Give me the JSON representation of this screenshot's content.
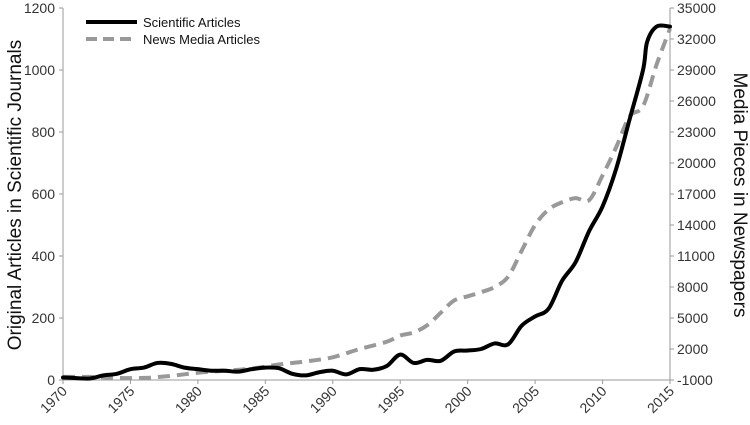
{
  "chart_data": {
    "type": "line",
    "title": "",
    "xlabel": "",
    "ylabel": "Original Articles in Scientific Journals",
    "y2label": "Media Pieces in Newspapers",
    "xlim": [
      1970,
      2015
    ],
    "ylim": [
      0,
      1200
    ],
    "y2lim": [
      -1000,
      35000
    ],
    "x_ticks": [
      "1970",
      "1975",
      "1980",
      "1985",
      "1990",
      "1995",
      "2000",
      "2005",
      "2010",
      "2015"
    ],
    "y_ticks": [
      "0",
      "200",
      "400",
      "600",
      "800",
      "1000",
      "1200"
    ],
    "y2_ticks": [
      "-1000",
      "2000",
      "5000",
      "8000",
      "11000",
      "14000",
      "17000",
      "20000",
      "23000",
      "26000",
      "29000",
      "32000",
      "35000"
    ],
    "grid": false,
    "legend_position": "top-left",
    "series": [
      {
        "name": "Scientific Articles",
        "axis": "left",
        "color": "#000000",
        "dash": "solid",
        "points": [
          [
            1970,
            8
          ],
          [
            1971,
            6
          ],
          [
            1972,
            5
          ],
          [
            1973,
            15
          ],
          [
            1974,
            20
          ],
          [
            1975,
            35
          ],
          [
            1976,
            40
          ],
          [
            1977,
            55
          ],
          [
            1978,
            52
          ],
          [
            1979,
            40
          ],
          [
            1980,
            35
          ],
          [
            1981,
            30
          ],
          [
            1982,
            30
          ],
          [
            1983,
            27
          ],
          [
            1984,
            35
          ],
          [
            1985,
            40
          ],
          [
            1986,
            38
          ],
          [
            1987,
            20
          ],
          [
            1988,
            15
          ],
          [
            1989,
            25
          ],
          [
            1990,
            30
          ],
          [
            1991,
            18
          ],
          [
            1992,
            35
          ],
          [
            1993,
            33
          ],
          [
            1994,
            45
          ],
          [
            1995,
            82
          ],
          [
            1996,
            55
          ],
          [
            1997,
            65
          ],
          [
            1998,
            62
          ],
          [
            1999,
            92
          ],
          [
            2000,
            95
          ],
          [
            2001,
            100
          ],
          [
            2002,
            118
          ],
          [
            2003,
            115
          ],
          [
            2004,
            175
          ],
          [
            2005,
            205
          ],
          [
            2006,
            230
          ],
          [
            2007,
            320
          ],
          [
            2008,
            380
          ],
          [
            2009,
            480
          ],
          [
            2010,
            560
          ],
          [
            2011,
            680
          ],
          [
            2012,
            840
          ],
          [
            2013,
            1000
          ],
          [
            2013.3,
            1090
          ],
          [
            2014,
            1140
          ],
          [
            2015,
            1140
          ]
        ]
      },
      {
        "name": "News Media Articles",
        "axis": "right",
        "color": "#999999",
        "dash": "dashed",
        "points": [
          [
            1970,
            -700
          ],
          [
            1972,
            -700
          ],
          [
            1974,
            -800
          ],
          [
            1976,
            -800
          ],
          [
            1978,
            -600
          ],
          [
            1980,
            -300
          ],
          [
            1982,
            -100
          ],
          [
            1984,
            100
          ],
          [
            1986,
            500
          ],
          [
            1988,
            800
          ],
          [
            1990,
            1200
          ],
          [
            1992,
            2000
          ],
          [
            1994,
            2700
          ],
          [
            1995,
            3300
          ],
          [
            1996,
            3600
          ],
          [
            1997,
            4300
          ],
          [
            1998,
            5500
          ],
          [
            1999,
            6700
          ],
          [
            2000,
            7100
          ],
          [
            2001,
            7500
          ],
          [
            2002,
            8000
          ],
          [
            2003,
            9000
          ],
          [
            2004,
            11500
          ],
          [
            2005,
            14000
          ],
          [
            2006,
            15500
          ],
          [
            2007,
            16200
          ],
          [
            2008,
            16600
          ],
          [
            2009,
            16400
          ],
          [
            2010,
            18800
          ],
          [
            2011,
            21500
          ],
          [
            2012,
            24500
          ],
          [
            2013,
            25500
          ],
          [
            2014,
            29500
          ],
          [
            2015,
            33000
          ]
        ]
      }
    ]
  }
}
